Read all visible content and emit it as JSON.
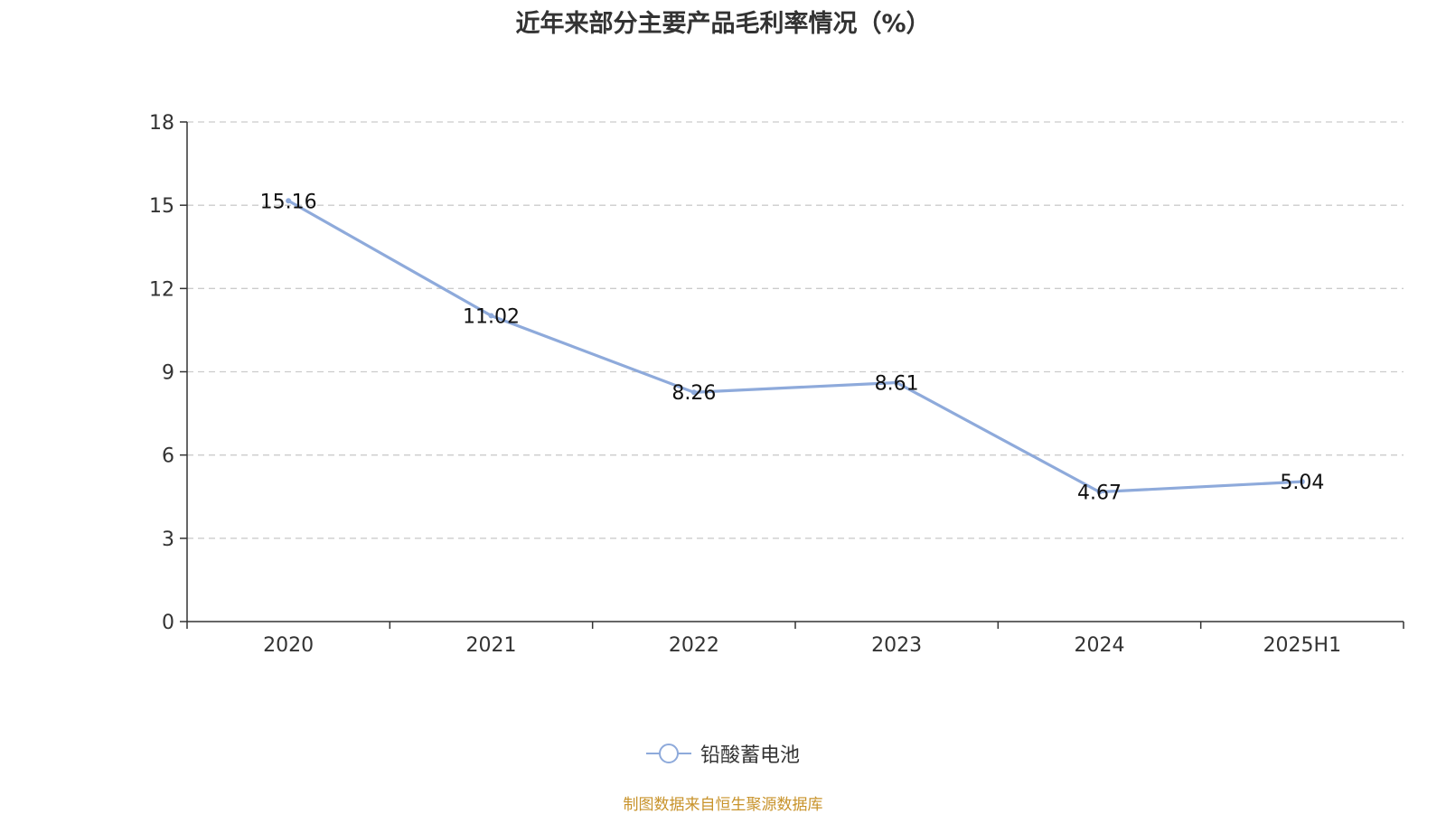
{
  "chart_data": {
    "type": "line",
    "title": "近年来部分主要产品毛利率情况（%）",
    "categories": [
      "2020",
      "2021",
      "2022",
      "2023",
      "2024",
      "2025H1"
    ],
    "series": [
      {
        "name": "铅酸蓄电池",
        "values": [
          15.16,
          11.02,
          8.26,
          8.61,
          4.67,
          5.04
        ],
        "data_labels": [
          "15.16",
          "11.02",
          "8.26",
          "8.61",
          "4.67",
          "5.04"
        ],
        "color": "#8eaadb"
      }
    ],
    "ylim": [
      0,
      18
    ],
    "yticks": [
      "0",
      "3",
      "6",
      "9",
      "12",
      "15",
      "18"
    ],
    "grid": true,
    "legend_position": "bottom-center"
  },
  "source": "制图数据来自恒生聚源数据库",
  "colors": {
    "axis": "#333333",
    "text": "#333333",
    "grid": "#cccccc",
    "source": "#c8932b"
  }
}
